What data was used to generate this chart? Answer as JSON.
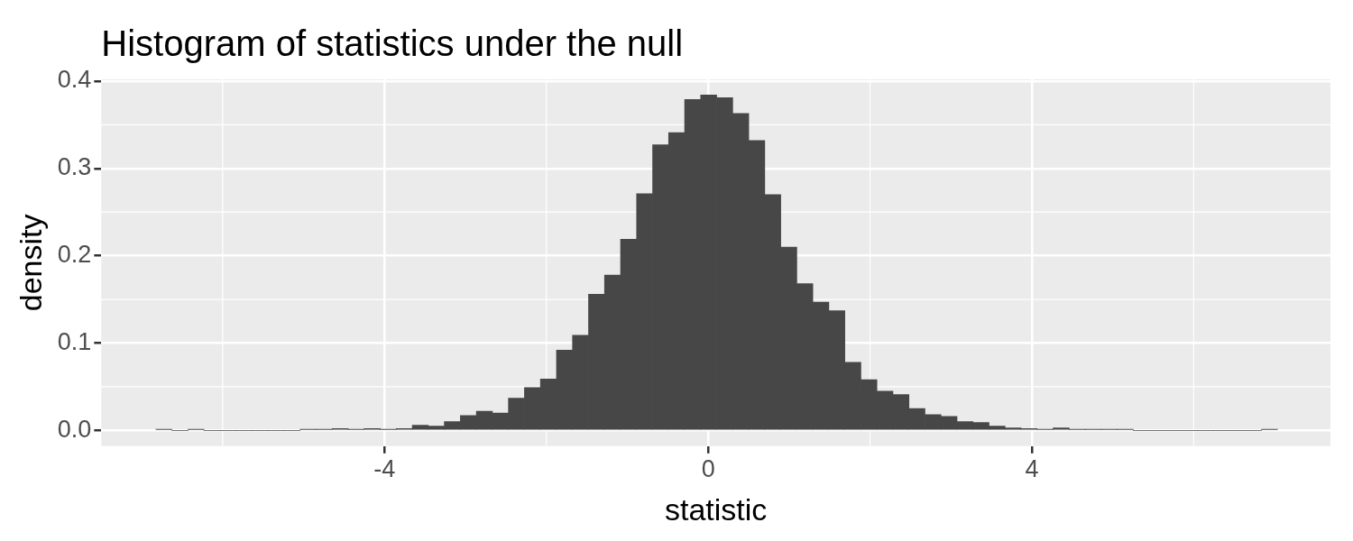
{
  "chart_data": {
    "type": "histogram",
    "title": "Histogram of statistics under the null",
    "xlabel": "statistic",
    "ylabel": "density",
    "bins": [
      -6.825,
      -6.627,
      -6.429,
      -6.231,
      -6.033,
      -5.835,
      -5.637,
      -5.439,
      -5.241,
      -5.043,
      -4.845,
      -4.647,
      -4.449,
      -4.251,
      -4.053,
      -3.855,
      -3.657,
      -3.459,
      -3.261,
      -3.063,
      -2.865,
      -2.667,
      -2.469,
      -2.271,
      -2.073,
      -1.875,
      -1.677,
      -1.479,
      -1.281,
      -1.083,
      -0.885,
      -0.687,
      -0.489,
      -0.291,
      -0.093,
      0.105,
      0.303,
      0.501,
      0.699,
      0.897,
      1.095,
      1.293,
      1.491,
      1.689,
      1.887,
      2.085,
      2.283,
      2.481,
      2.679,
      2.877,
      3.075,
      3.273,
      3.471,
      3.669,
      3.867,
      4.065,
      4.263,
      4.461,
      4.659,
      4.857,
      5.055,
      5.253,
      5.451,
      5.649,
      5.847,
      6.045,
      6.243,
      6.441,
      6.639,
      6.837,
      7.035
    ],
    "values": [
      0.001,
      0,
      0.001,
      0,
      0,
      0,
      0,
      0,
      0,
      0.001,
      0.001,
      0.002,
      0.001,
      0.002,
      0.001,
      0.002,
      0.006,
      0.005,
      0.01,
      0.017,
      0.022,
      0.02,
      0.037,
      0.049,
      0.059,
      0.092,
      0.109,
      0.156,
      0.178,
      0.219,
      0.271,
      0.327,
      0.341,
      0.379,
      0.384,
      0.381,
      0.363,
      0.332,
      0.27,
      0.21,
      0.168,
      0.147,
      0.137,
      0.078,
      0.058,
      0.045,
      0.041,
      0.025,
      0.018,
      0.016,
      0.01,
      0.009,
      0.005,
      0.003,
      0.002,
      0.001,
      0.003,
      0.001,
      0.001,
      0.001,
      0.001,
      0,
      0,
      0,
      0,
      0,
      0,
      0,
      0,
      0.001
    ],
    "color": "#474747",
    "xlim": [
      -7.5,
      7.69
    ],
    "ylim": [
      -0.018,
      0.402
    ],
    "xticks": [
      -4,
      0,
      4
    ],
    "yticks": [
      {
        "value": 0,
        "label": "0.0"
      },
      {
        "value": 0.1,
        "label": "0.1"
      },
      {
        "value": 0.2,
        "label": "0.2"
      },
      {
        "value": 0.3,
        "label": "0.3"
      },
      {
        "value": 0.4,
        "label": "0.4"
      }
    ],
    "grid": true
  }
}
